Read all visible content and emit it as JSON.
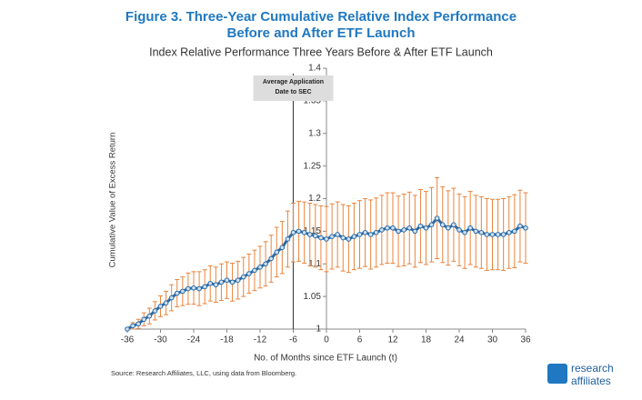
{
  "chart_data": {
    "type": "line",
    "title": [
      "Figure 3. Three-Year Cumulative Relative Index Performance",
      "Before and After ETF Launch"
    ],
    "subtitle": "Index Relative Performance Three Years Before & After ETF Launch",
    "y_label": "Cumulative Value of Excess Return",
    "x_label": "No. of Months since ETF Launch (t)",
    "annotation": {
      "x": -6,
      "lines": [
        "Average Application",
        "Date to SEC"
      ]
    },
    "source": "Source: Research Affiliates, LLC, using data from Bloomberg.",
    "logo": [
      "research",
      "affiliates"
    ],
    "x": [
      -36,
      -35,
      -34,
      -33,
      -32,
      -31,
      -30,
      -29,
      -28,
      -27,
      -26,
      -25,
      -24,
      -23,
      -22,
      -21,
      -20,
      -19,
      -18,
      -17,
      -16,
      -15,
      -14,
      -13,
      -12,
      -11,
      -10,
      -9,
      -8,
      -7,
      -6,
      -5,
      -4,
      -3,
      -2,
      -1,
      0,
      1,
      2,
      3,
      4,
      5,
      6,
      7,
      8,
      9,
      10,
      11,
      12,
      13,
      14,
      15,
      16,
      17,
      18,
      19,
      20,
      21,
      22,
      23,
      24,
      25,
      26,
      27,
      28,
      29,
      30,
      31,
      32,
      33,
      34,
      35,
      36
    ],
    "series": [
      {
        "name": "Cumulative Value of Excess Return",
        "color": "#2a6aa5",
        "error_color": "#e8843c",
        "values": [
          1.0,
          1.005,
          1.008,
          1.015,
          1.02,
          1.028,
          1.035,
          1.04,
          1.048,
          1.055,
          1.058,
          1.062,
          1.063,
          1.062,
          1.065,
          1.07,
          1.068,
          1.072,
          1.075,
          1.072,
          1.075,
          1.08,
          1.085,
          1.09,
          1.095,
          1.1,
          1.108,
          1.118,
          1.125,
          1.138,
          1.148,
          1.15,
          1.148,
          1.145,
          1.143,
          1.14,
          1.138,
          1.142,
          1.145,
          1.14,
          1.138,
          1.142,
          1.145,
          1.148,
          1.145,
          1.148,
          1.152,
          1.155,
          1.155,
          1.15,
          1.152,
          1.155,
          1.15,
          1.158,
          1.155,
          1.16,
          1.17,
          1.16,
          1.155,
          1.16,
          1.152,
          1.148,
          1.155,
          1.15,
          1.148,
          1.145,
          1.145,
          1.145,
          1.145,
          1.148,
          1.15,
          1.158,
          1.155
        ],
        "errors": [
          0,
          0.005,
          0.007,
          0.01,
          0.012,
          0.014,
          0.016,
          0.018,
          0.02,
          0.021,
          0.022,
          0.024,
          0.025,
          0.026,
          0.026,
          0.027,
          0.027,
          0.028,
          0.028,
          0.029,
          0.029,
          0.03,
          0.03,
          0.031,
          0.032,
          0.034,
          0.036,
          0.038,
          0.04,
          0.043,
          0.045,
          0.046,
          0.047,
          0.048,
          0.048,
          0.049,
          0.05,
          0.05,
          0.05,
          0.051,
          0.051,
          0.051,
          0.052,
          0.052,
          0.053,
          0.053,
          0.053,
          0.054,
          0.054,
          0.054,
          0.055,
          0.055,
          0.055,
          0.056,
          0.056,
          0.057,
          0.062,
          0.058,
          0.057,
          0.056,
          0.055,
          0.055,
          0.056,
          0.055,
          0.055,
          0.055,
          0.054,
          0.054,
          0.055,
          0.055,
          0.056,
          0.055,
          0.054
        ]
      }
    ],
    "xlim": [
      -36,
      36
    ],
    "ylim": [
      1,
      1.4
    ],
    "xticks": [
      -36,
      -30,
      -24,
      -18,
      -12,
      -6,
      0,
      6,
      12,
      18,
      24,
      30,
      36
    ],
    "yticks": [
      1,
      1.05,
      1.1,
      1.15,
      1.2,
      1.25,
      1.3,
      1.35,
      1.4
    ]
  }
}
